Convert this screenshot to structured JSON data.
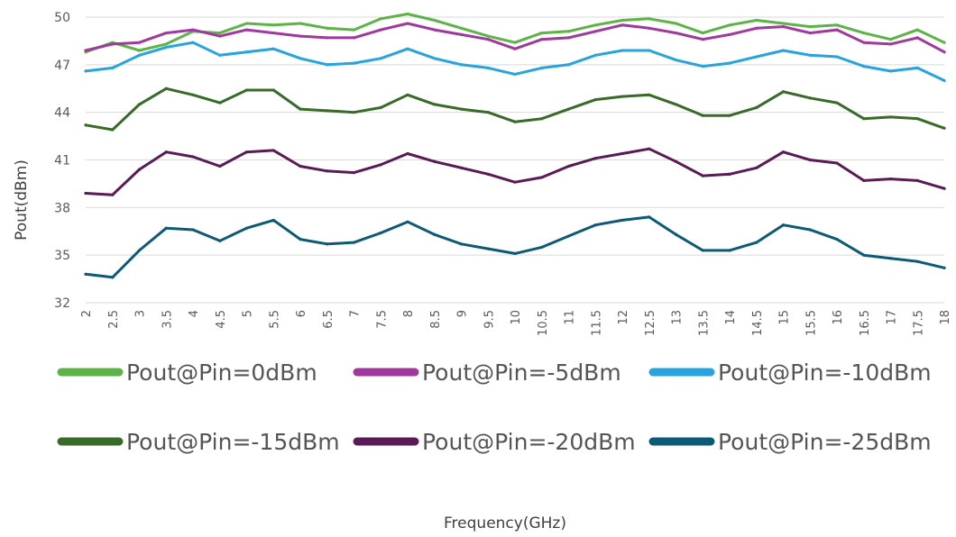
{
  "chart_data": {
    "type": "line",
    "xlabel": "Frequency(GHz)",
    "ylabel": "Pout(dBm)",
    "ylim": [
      32,
      50
    ],
    "xlim": [
      2,
      18
    ],
    "yticks": [
      32,
      35,
      38,
      41,
      44,
      47,
      50
    ],
    "xticks": [
      "2",
      "2.5",
      "3",
      "3.5",
      "4",
      "4.5",
      "5",
      "5.5",
      "6",
      "6.5",
      "7",
      "7.5",
      "8",
      "8.5",
      "9",
      "9.5",
      "10",
      "10.5",
      "11",
      "11.5",
      "12",
      "12.5",
      "13",
      "13.5",
      "14",
      "14.5",
      "15",
      "15.5",
      "16",
      "16.5",
      "17",
      "17.5",
      "18"
    ],
    "grid": "horizontal",
    "legend_position": "bottom",
    "x": [
      2,
      2.5,
      3,
      3.5,
      4,
      4.5,
      5,
      5.5,
      6,
      6.5,
      7,
      7.5,
      8,
      8.5,
      9,
      9.5,
      10,
      10.5,
      11,
      11.5,
      12,
      12.5,
      13,
      13.5,
      14,
      14.5,
      15,
      15.5,
      16,
      16.5,
      17,
      17.5,
      18
    ],
    "series": [
      {
        "name": "Pout@Pin=0dBm",
        "color": "#5cb346",
        "values": [
          47.8,
          48.4,
          47.9,
          48.3,
          49.1,
          49.0,
          49.6,
          49.5,
          49.6,
          49.3,
          49.2,
          49.9,
          50.2,
          49.8,
          49.3,
          48.8,
          48.4,
          49.0,
          49.1,
          49.5,
          49.8,
          49.9,
          49.6,
          49.0,
          49.5,
          49.8,
          49.6,
          49.4,
          49.5,
          49.0,
          48.6,
          49.2,
          48.4
        ]
      },
      {
        "name": "Pout@Pin=-5dBm",
        "color": "#a0399d",
        "values": [
          47.9,
          48.3,
          48.4,
          49.0,
          49.2,
          48.8,
          49.2,
          49.0,
          48.8,
          48.7,
          48.7,
          49.2,
          49.6,
          49.2,
          48.9,
          48.6,
          48.0,
          48.6,
          48.7,
          49.1,
          49.5,
          49.3,
          49.0,
          48.6,
          48.9,
          49.3,
          49.4,
          49.0,
          49.2,
          48.4,
          48.3,
          48.7,
          47.8
        ]
      },
      {
        "name": "Pout@Pin=-10dBm",
        "color": "#27a3dd",
        "values": [
          46.6,
          46.8,
          47.6,
          48.1,
          48.4,
          47.6,
          47.8,
          48.0,
          47.4,
          47.0,
          47.1,
          47.4,
          48.0,
          47.4,
          47.0,
          46.8,
          46.4,
          46.8,
          47.0,
          47.6,
          47.9,
          47.9,
          47.3,
          46.9,
          47.1,
          47.5,
          47.9,
          47.6,
          47.5,
          46.9,
          46.6,
          46.8,
          46.0
        ]
      },
      {
        "name": "Pout@Pin=-15dBm",
        "color": "#386b28",
        "values": [
          43.2,
          42.9,
          44.5,
          45.5,
          45.1,
          44.6,
          45.4,
          45.4,
          44.2,
          44.1,
          44.0,
          44.3,
          45.1,
          44.5,
          44.2,
          44.0,
          43.4,
          43.6,
          44.2,
          44.8,
          45.0,
          45.1,
          44.5,
          43.8,
          43.8,
          44.3,
          45.3,
          44.9,
          44.6,
          43.6,
          43.7,
          43.6,
          43.0
        ]
      },
      {
        "name": "Pout@Pin=-20dBm",
        "color": "#5a1a56",
        "values": [
          38.9,
          38.8,
          40.4,
          41.5,
          41.2,
          40.6,
          41.5,
          41.6,
          40.6,
          40.3,
          40.2,
          40.7,
          41.4,
          40.9,
          40.5,
          40.1,
          39.6,
          39.9,
          40.6,
          41.1,
          41.4,
          41.7,
          40.9,
          40.0,
          40.1,
          40.5,
          41.5,
          41.0,
          40.8,
          39.7,
          39.8,
          39.7,
          39.2
        ]
      },
      {
        "name": "Pout@Pin=-25dBm",
        "color": "#0d5a76",
        "values": [
          33.8,
          33.6,
          35.3,
          36.7,
          36.6,
          35.9,
          36.7,
          37.2,
          36.0,
          35.7,
          35.8,
          36.4,
          37.1,
          36.3,
          35.7,
          35.4,
          35.1,
          35.5,
          36.2,
          36.9,
          37.2,
          37.4,
          36.3,
          35.3,
          35.3,
          35.8,
          36.9,
          36.6,
          36.0,
          35.0,
          34.8,
          34.6,
          34.2
        ]
      }
    ]
  }
}
